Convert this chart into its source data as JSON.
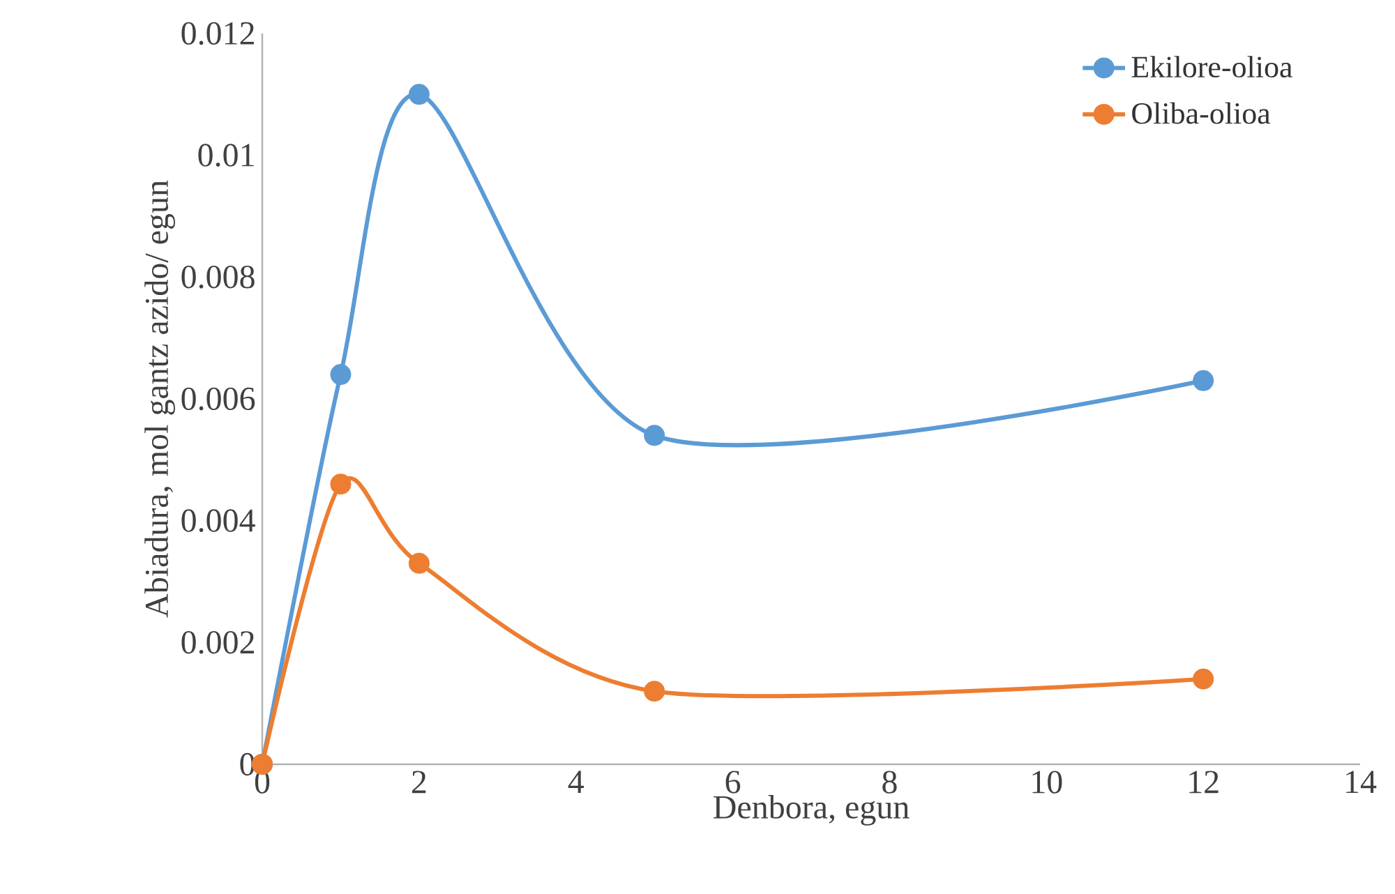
{
  "chart_data": {
    "type": "line",
    "xlabel": "Denbora, egun",
    "ylabel": "Abiadura, mol gantz azido/ egun",
    "series": [
      {
        "name": "Ekilore-olioa",
        "color": "#5b9bd5",
        "x": [
          0,
          1,
          2,
          5,
          12
        ],
        "values": [
          0,
          0.0064,
          0.011,
          0.0054,
          0.0063
        ]
      },
      {
        "name": "Oliba-olioa",
        "color": "#ed7d31",
        "x": [
          0,
          1,
          2,
          5,
          12
        ],
        "values": [
          0,
          0.0046,
          0.0033,
          0.0012,
          0.0014
        ]
      }
    ],
    "xlim": [
      0,
      14
    ],
    "xticks": [
      0,
      2,
      4,
      6,
      8,
      10,
      12,
      14
    ],
    "ylim": [
      0,
      0.012
    ],
    "yticks": [
      0,
      0.002,
      0.004,
      0.006,
      0.008,
      0.01,
      0.012
    ],
    "grid": false,
    "legend": "top right",
    "marker": "circle",
    "line_style": "solid"
  }
}
